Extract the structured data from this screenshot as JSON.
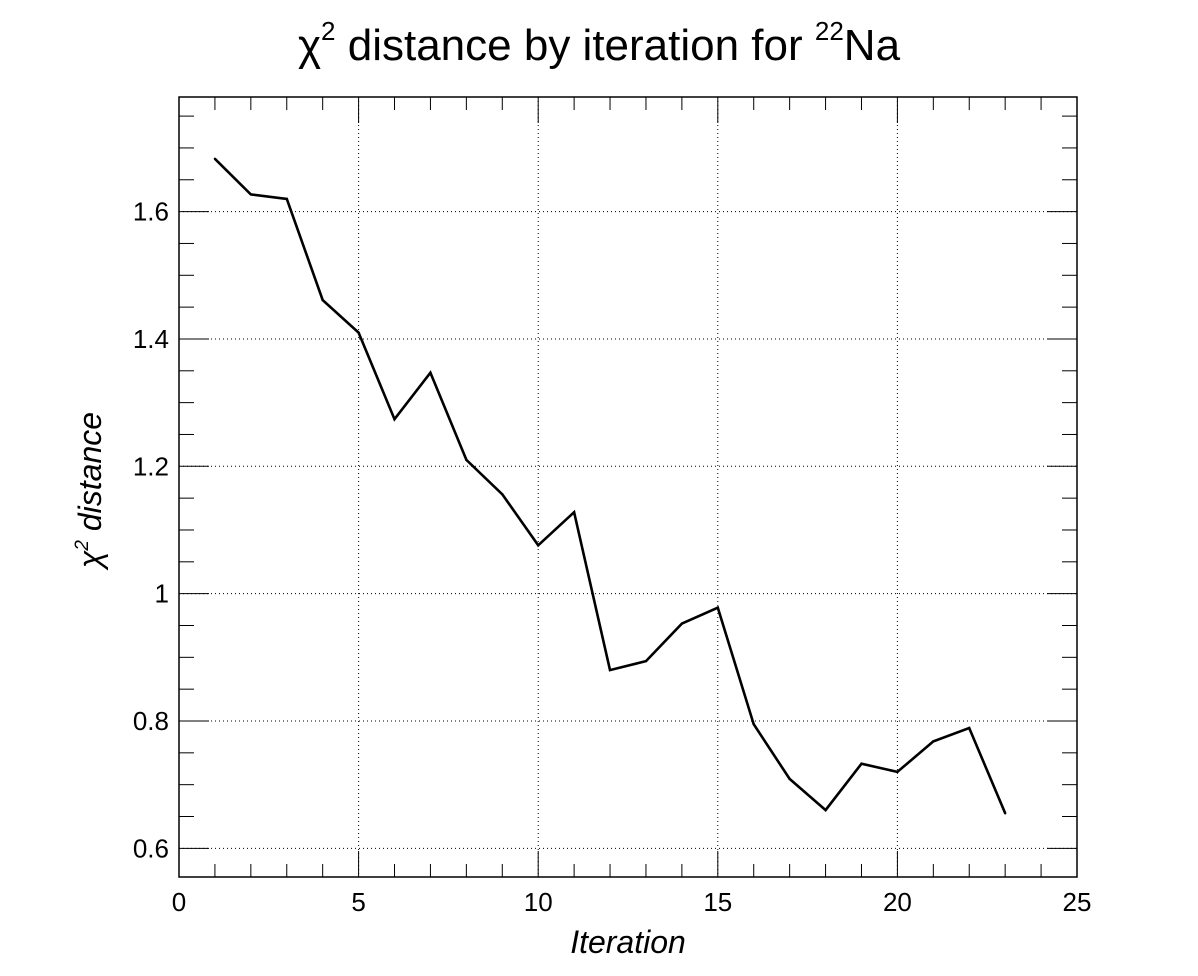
{
  "chart_data": {
    "type": "line",
    "title": {
      "prefix": "χ",
      "prefix_sup": "2",
      "main": " distance by iteration for ",
      "isotope_sup": "22",
      "isotope": "Na"
    },
    "xlabel": "Iteration",
    "ylabel": {
      "symbol": "χ",
      "sup": "2",
      "text": " distance"
    },
    "xlim": [
      0,
      25
    ],
    "ylim": [
      0.555,
      1.78
    ],
    "xticks": [
      0,
      5,
      10,
      15,
      20,
      25
    ],
    "xtick_labels": [
      "0",
      "5",
      "10",
      "15",
      "20",
      "25"
    ],
    "yticks": [
      0.6,
      0.8,
      1.0,
      1.2,
      1.4,
      1.6
    ],
    "ytick_labels": [
      "0.6",
      "0.8",
      "1",
      "1.2",
      "1.4",
      "1.6"
    ],
    "grid": true,
    "series": [
      {
        "x": [
          1,
          2,
          3,
          4,
          5,
          6,
          7,
          8,
          9,
          10,
          11,
          12,
          13,
          14,
          15,
          16,
          17,
          18,
          19,
          20,
          21,
          22,
          23
        ],
        "values": [
          1.683,
          1.627,
          1.62,
          1.461,
          1.41,
          1.274,
          1.347,
          1.21,
          1.156,
          1.076,
          1.128,
          0.88,
          0.894,
          0.953,
          0.978,
          0.795,
          0.709,
          0.66,
          0.733,
          0.72,
          0.768,
          0.789,
          0.655
        ],
        "color": "#000000"
      }
    ]
  }
}
